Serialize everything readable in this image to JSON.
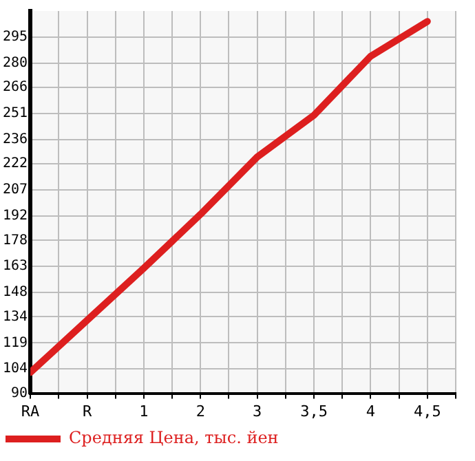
{
  "chart_data": {
    "type": "line",
    "categories": [
      "RA",
      "R",
      "1",
      "2",
      "3",
      "3,5",
      "4",
      "4,5"
    ],
    "series": [
      {
        "name": "Средняя Цена, тыс. йен",
        "color": "#dd1f1f",
        "values": [
          102,
          132,
          162,
          193,
          226,
          250,
          284,
          304
        ]
      }
    ],
    "ylim": [
      90,
      310
    ],
    "yticks": [
      90,
      104,
      119,
      134,
      148,
      163,
      178,
      192,
      207,
      222,
      236,
      251,
      266,
      280,
      295
    ],
    "grid": true,
    "legend": "bottom left",
    "marker": "none",
    "line_style": "solid"
  }
}
